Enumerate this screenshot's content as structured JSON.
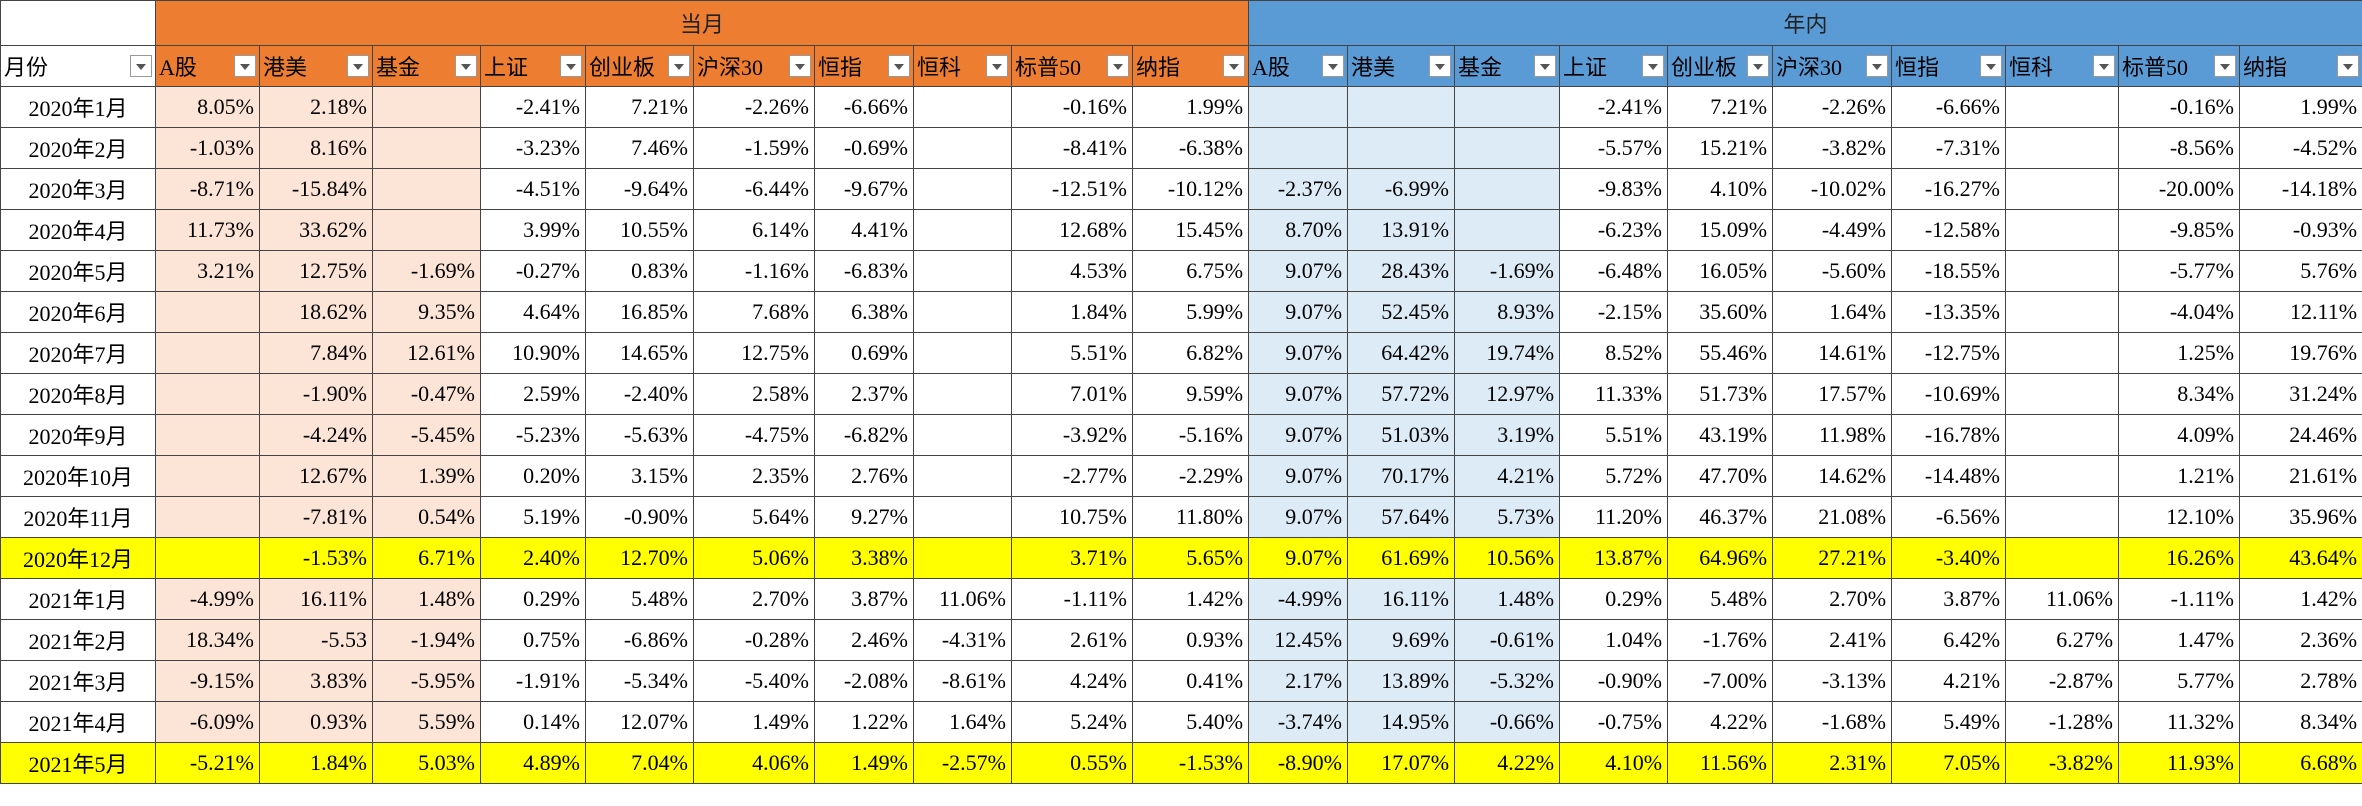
{
  "table": {
    "month_header": "月份",
    "groups": [
      {
        "title": "当月",
        "columns": [
          "A股",
          "港美",
          "基金",
          "上证",
          "创业板",
          "沪深30",
          "恒指",
          "恒科",
          "标普50",
          "纳指"
        ]
      },
      {
        "title": "年内",
        "columns": [
          "A股",
          "港美",
          "基金",
          "上证",
          "创业板",
          "沪深30",
          "恒指",
          "恒科",
          "标普50",
          "纳指"
        ]
      }
    ],
    "highlight_color": "#ffff00",
    "highlighted_rows": [
      11,
      16
    ],
    "rows": [
      {
        "month": "2020年1月",
        "cells": [
          "8.05%",
          "2.18%",
          null,
          "-2.41%",
          "7.21%",
          "-2.26%",
          "-6.66%",
          null,
          "-0.16%",
          "1.99%",
          null,
          null,
          null,
          "-2.41%",
          "7.21%",
          "-2.26%",
          "-6.66%",
          null,
          "-0.16%",
          "1.99%"
        ]
      },
      {
        "month": "2020年2月",
        "cells": [
          "-1.03%",
          "8.16%",
          null,
          "-3.23%",
          "7.46%",
          "-1.59%",
          "-0.69%",
          null,
          "-8.41%",
          "-6.38%",
          null,
          null,
          null,
          "-5.57%",
          "15.21%",
          "-3.82%",
          "-7.31%",
          null,
          "-8.56%",
          "-4.52%"
        ]
      },
      {
        "month": "2020年3月",
        "cells": [
          "-8.71%",
          "-15.84%",
          null,
          "-4.51%",
          "-9.64%",
          "-6.44%",
          "-9.67%",
          null,
          "-12.51%",
          "-10.12%",
          "-2.37%",
          "-6.99%",
          null,
          "-9.83%",
          "4.10%",
          "-10.02%",
          "-16.27%",
          null,
          "-20.00%",
          "-14.18%"
        ]
      },
      {
        "month": "2020年4月",
        "cells": [
          "11.73%",
          "33.62%",
          null,
          "3.99%",
          "10.55%",
          "6.14%",
          "4.41%",
          null,
          "12.68%",
          "15.45%",
          "8.70%",
          "13.91%",
          null,
          "-6.23%",
          "15.09%",
          "-4.49%",
          "-12.58%",
          null,
          "-9.85%",
          "-0.93%"
        ]
      },
      {
        "month": "2020年5月",
        "cells": [
          "3.21%",
          "12.75%",
          "-1.69%",
          "-0.27%",
          "0.83%",
          "-1.16%",
          "-6.83%",
          null,
          "4.53%",
          "6.75%",
          "9.07%",
          "28.43%",
          "-1.69%",
          "-6.48%",
          "16.05%",
          "-5.60%",
          "-18.55%",
          null,
          "-5.77%",
          "5.76%"
        ]
      },
      {
        "month": "2020年6月",
        "cells": [
          null,
          "18.62%",
          "9.35%",
          "4.64%",
          "16.85%",
          "7.68%",
          "6.38%",
          null,
          "1.84%",
          "5.99%",
          "9.07%",
          "52.45%",
          "8.93%",
          "-2.15%",
          "35.60%",
          "1.64%",
          "-13.35%",
          null,
          "-4.04%",
          "12.11%"
        ]
      },
      {
        "month": "2020年7月",
        "cells": [
          null,
          "7.84%",
          "12.61%",
          "10.90%",
          "14.65%",
          "12.75%",
          "0.69%",
          null,
          "5.51%",
          "6.82%",
          "9.07%",
          "64.42%",
          "19.74%",
          "8.52%",
          "55.46%",
          "14.61%",
          "-12.75%",
          null,
          "1.25%",
          "19.76%"
        ]
      },
      {
        "month": "2020年8月",
        "cells": [
          null,
          "-1.90%",
          "-0.47%",
          "2.59%",
          "-2.40%",
          "2.58%",
          "2.37%",
          null,
          "7.01%",
          "9.59%",
          "9.07%",
          "57.72%",
          "12.97%",
          "11.33%",
          "51.73%",
          "17.57%",
          "-10.69%",
          null,
          "8.34%",
          "31.24%"
        ]
      },
      {
        "month": "2020年9月",
        "cells": [
          null,
          "-4.24%",
          "-5.45%",
          "-5.23%",
          "-5.63%",
          "-4.75%",
          "-6.82%",
          null,
          "-3.92%",
          "-5.16%",
          "9.07%",
          "51.03%",
          "3.19%",
          "5.51%",
          "43.19%",
          "11.98%",
          "-16.78%",
          null,
          "4.09%",
          "24.46%"
        ]
      },
      {
        "month": "2020年10月",
        "cells": [
          null,
          "12.67%",
          "1.39%",
          "0.20%",
          "3.15%",
          "2.35%",
          "2.76%",
          null,
          "-2.77%",
          "-2.29%",
          "9.07%",
          "70.17%",
          "4.21%",
          "5.72%",
          "47.70%",
          "14.62%",
          "-14.48%",
          null,
          "1.21%",
          "21.61%"
        ]
      },
      {
        "month": "2020年11月",
        "cells": [
          null,
          "-7.81%",
          "0.54%",
          "5.19%",
          "-0.90%",
          "5.64%",
          "9.27%",
          null,
          "10.75%",
          "11.80%",
          "9.07%",
          "57.64%",
          "5.73%",
          "11.20%",
          "46.37%",
          "21.08%",
          "-6.56%",
          null,
          "12.10%",
          "35.96%"
        ]
      },
      {
        "month": "2020年12月",
        "cells": [
          null,
          "-1.53%",
          "6.71%",
          "2.40%",
          "12.70%",
          "5.06%",
          "3.38%",
          null,
          "3.71%",
          "5.65%",
          "9.07%",
          "61.69%",
          "10.56%",
          "13.87%",
          "64.96%",
          "27.21%",
          "-3.40%",
          null,
          "16.26%",
          "43.64%"
        ]
      },
      {
        "month": "2021年1月",
        "cells": [
          "-4.99%",
          "16.11%",
          "1.48%",
          "0.29%",
          "5.48%",
          "2.70%",
          "3.87%",
          "11.06%",
          "-1.11%",
          "1.42%",
          "-4.99%",
          "16.11%",
          "1.48%",
          "0.29%",
          "5.48%",
          "2.70%",
          "3.87%",
          "11.06%",
          "-1.11%",
          "1.42%"
        ]
      },
      {
        "month": "2021年2月",
        "cells": [
          "18.34%",
          "-5.53",
          "-1.94%",
          "0.75%",
          "-6.86%",
          "-0.28%",
          "2.46%",
          "-4.31%",
          "2.61%",
          "0.93%",
          "12.45%",
          "9.69%",
          "-0.61%",
          "1.04%",
          "-1.76%",
          "2.41%",
          "6.42%",
          "6.27%",
          "1.47%",
          "2.36%"
        ]
      },
      {
        "month": "2021年3月",
        "cells": [
          "-9.15%",
          "3.83%",
          "-5.95%",
          "-1.91%",
          "-5.34%",
          "-5.40%",
          "-2.08%",
          "-8.61%",
          "4.24%",
          "0.41%",
          "2.17%",
          "13.89%",
          "-5.32%",
          "-0.90%",
          "-7.00%",
          "-3.13%",
          "4.21%",
          "-2.87%",
          "5.77%",
          "2.78%"
        ]
      },
      {
        "month": "2021年4月",
        "cells": [
          "-6.09%",
          "0.93%",
          "5.59%",
          "0.14%",
          "12.07%",
          "1.49%",
          "1.22%",
          "1.64%",
          "5.24%",
          "5.40%",
          "-3.74%",
          "14.95%",
          "-0.66%",
          "-0.75%",
          "4.22%",
          "-1.68%",
          "5.49%",
          "-1.28%",
          "11.32%",
          "8.34%"
        ]
      },
      {
        "month": "2021年5月",
        "cells": [
          "-5.21%",
          "1.84%",
          "5.03%",
          "4.89%",
          "7.04%",
          "4.06%",
          "1.49%",
          "-2.57%",
          "0.55%",
          "-1.53%",
          "-8.90%",
          "17.07%",
          "4.22%",
          "4.10%",
          "11.56%",
          "2.31%",
          "7.05%",
          "-3.82%",
          "11.93%",
          "6.68%"
        ]
      }
    ]
  }
}
